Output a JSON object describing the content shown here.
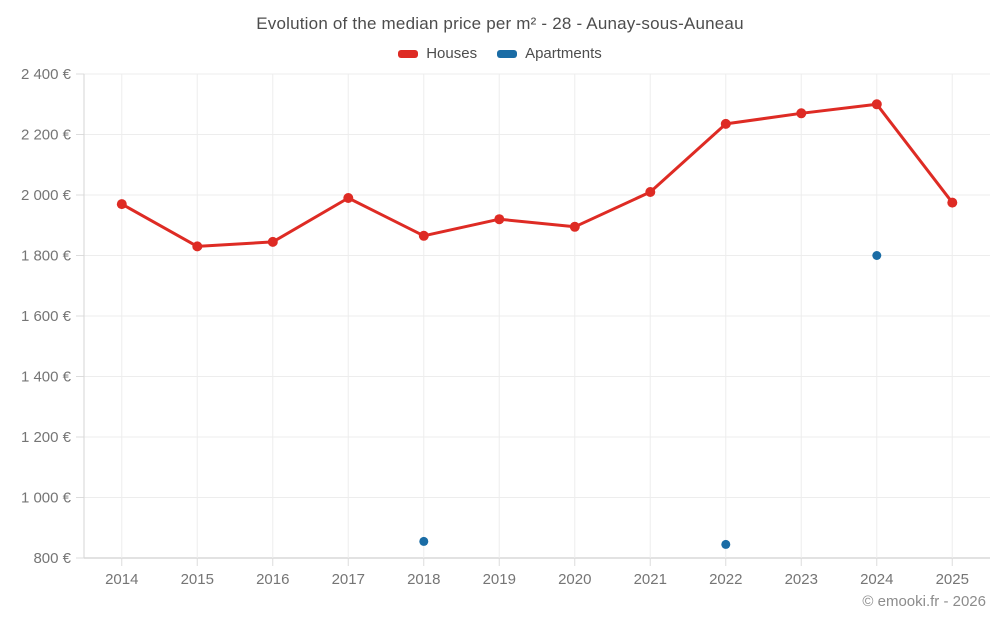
{
  "footer": {
    "copyright": "© emooki.fr - 2026"
  },
  "chart_data": {
    "type": "line",
    "title": "Evolution of the median price per m² - 28 - Aunay-sous-Auneau",
    "xlabel": "",
    "ylabel": "",
    "categories": [
      "2014",
      "2015",
      "2016",
      "2017",
      "2018",
      "2019",
      "2020",
      "2021",
      "2022",
      "2023",
      "2024",
      "2025"
    ],
    "series": [
      {
        "name": "Houses",
        "color": "#de2b24",
        "values": [
          1970,
          1830,
          1845,
          1990,
          1865,
          1920,
          1895,
          2010,
          2235,
          2270,
          2300,
          1975
        ]
      },
      {
        "name": "Apartments",
        "color": "#1a6ca5",
        "values": [
          null,
          null,
          null,
          null,
          855,
          null,
          null,
          null,
          845,
          null,
          1800,
          null
        ]
      }
    ],
    "ylim": [
      800,
      2400
    ],
    "ytick_values": [
      800,
      1000,
      1200,
      1400,
      1600,
      1800,
      2000,
      2200,
      2400
    ],
    "ytick_labels": [
      "800 €",
      "1 000 €",
      "1 200 €",
      "1 400 €",
      "1 600 €",
      "1 800 €",
      "2 000 €",
      "2 200 €",
      "2 400 €"
    ],
    "grid": true,
    "legend_position": "top",
    "grid_color": "#ededed",
    "axis_line_color": "#c4c4c4",
    "tick_color": "#dcdcdc",
    "tick_text_color": "#757575",
    "title_color": "#4d4d4d"
  }
}
